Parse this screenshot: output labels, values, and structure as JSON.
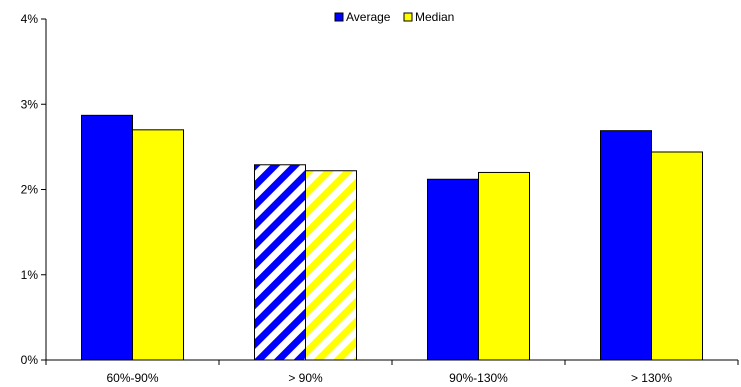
{
  "chart_data": {
    "type": "bar",
    "categories": [
      "60%-90%",
      "> 90%",
      "90%-130%",
      "> 130%"
    ],
    "series": [
      {
        "name": "Average",
        "values": [
          2.87,
          2.29,
          2.12,
          2.69
        ],
        "color": "#0000ff",
        "hatched": [
          false,
          true,
          false,
          false
        ]
      },
      {
        "name": "Median",
        "values": [
          2.7,
          2.22,
          2.2,
          2.44
        ],
        "color": "#ffff00",
        "hatched": [
          false,
          true,
          false,
          false
        ]
      }
    ],
    "ylim": [
      0,
      4
    ],
    "yticks": [
      0,
      1,
      2,
      3,
      4
    ],
    "ytick_labels": [
      "0%",
      "1%",
      "2%",
      "3%",
      "4%"
    ],
    "title": "",
    "xlabel": "",
    "ylabel": "",
    "grid": false,
    "legend_position": "top-center"
  }
}
